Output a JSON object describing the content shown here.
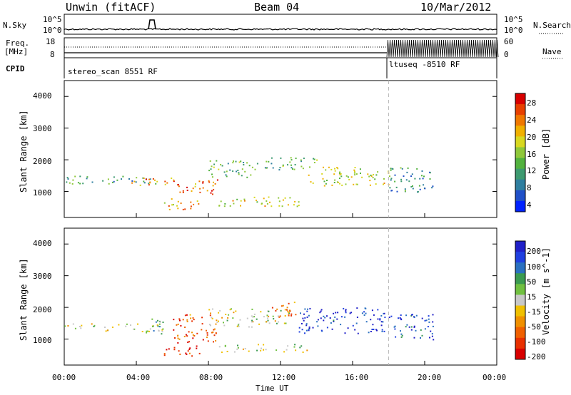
{
  "header": {
    "radar": "Unwin (fitACF)",
    "beam": "Beam 04",
    "date": "10/Mar/2012"
  },
  "top_panels": {
    "nsky_label": "N.Sky",
    "nsearch_label": "N.Search",
    "nsky_ticks": [
      "10^5",
      "10^0"
    ],
    "nsearch_ticks": [
      "10^5",
      "10^0"
    ],
    "freq_label_1": "Freq.",
    "freq_label_2": "[MHz]",
    "freq_ticks": [
      "18",
      "8"
    ],
    "nave_label": "Nave",
    "nave_ticks": [
      "60",
      "0"
    ],
    "cpid_label": "CPID",
    "cpid_1": "stereo_scan 8551 RF",
    "cpid_2": "ltuseq -8510 RF"
  },
  "chart_data": [
    {
      "type": "heatmap",
      "title": "",
      "xlabel": "Time UT",
      "ylabel": "Slant Range [km]",
      "x_ticks": [
        "00:00",
        "04:00",
        "08:00",
        "12:00",
        "16:00",
        "20:00",
        "00:00"
      ],
      "y_ticks": [
        "1000",
        "2000",
        "3000",
        "4000"
      ],
      "xlim": [
        0,
        24
      ],
      "ylim": [
        180,
        4500
      ],
      "colorbar": {
        "label": "Power [dB]",
        "ticks": [
          "4",
          "8",
          "12",
          "16",
          "20",
          "24",
          "28"
        ],
        "colors": [
          "#0022ff",
          "#2050c8",
          "#2f7fa0",
          "#3d9a70",
          "#52b23e",
          "#8fc83a",
          "#d8d820",
          "#f0b000",
          "#f07800",
          "#e84000",
          "#d80000"
        ]
      },
      "regions": [
        {
          "t": [
            0.0,
            5.5
          ],
          "r": [
            1250,
            1500
          ],
          "level": 0.35
        },
        {
          "t": [
            3.5,
            6.0
          ],
          "r": [
            1200,
            1450
          ],
          "level": 0.75
        },
        {
          "t": [
            5.5,
            7.5
          ],
          "r": [
            450,
            800
          ],
          "level": 0.7
        },
        {
          "t": [
            6.0,
            8.5
          ],
          "r": [
            900,
            1400
          ],
          "level": 0.8
        },
        {
          "t": [
            8.0,
            10.5
          ],
          "r": [
            1400,
            2000
          ],
          "level": 0.4
        },
        {
          "t": [
            8.5,
            13.5
          ],
          "r": [
            550,
            850
          ],
          "level": 0.6
        },
        {
          "t": [
            10.5,
            14.0
          ],
          "r": [
            1700,
            2100
          ],
          "level": 0.4
        },
        {
          "t": [
            13.5,
            17.5
          ],
          "r": [
            1200,
            1800
          ],
          "level": 0.55
        },
        {
          "t": [
            17.5,
            18.0
          ],
          "r": [
            1200,
            1700
          ],
          "level": 0.65
        },
        {
          "t": [
            18.0,
            20.5
          ],
          "r": [
            1000,
            1800
          ],
          "level": 0.3
        }
      ]
    },
    {
      "type": "heatmap",
      "title": "",
      "xlabel": "Time UT",
      "ylabel": "Slant Range [km]",
      "x_ticks": [
        "00:00",
        "04:00",
        "08:00",
        "12:00",
        "16:00",
        "20:00",
        "00:00"
      ],
      "y_ticks": [
        "1000",
        "2000",
        "3000",
        "4000"
      ],
      "xlim": [
        0,
        24
      ],
      "ylim": [
        180,
        4500
      ],
      "colorbar": {
        "label": "Velocity [m s^-1]",
        "ticks": [
          "200",
          "100",
          "50",
          "15",
          "-15",
          "-50",
          "-100",
          "-200"
        ],
        "colors": [
          "#2020c8",
          "#2040e0",
          "#2a70c0",
          "#3a9a50",
          "#70c040",
          "#c8c8c8",
          "#f0c000",
          "#f09000",
          "#f06000",
          "#e83000",
          "#d80000"
        ]
      },
      "regions": [
        {
          "t": [
            0.0,
            5.5
          ],
          "r": [
            1250,
            1500
          ],
          "level": 0.5
        },
        {
          "t": [
            4.5,
            5.5
          ],
          "r": [
            1150,
            1700
          ],
          "level": 0.35
        },
        {
          "t": [
            5.5,
            7.5
          ],
          "r": [
            450,
            800
          ],
          "level": 0.9
        },
        {
          "t": [
            6.0,
            8.5
          ],
          "r": [
            900,
            1800
          ],
          "level": 0.8
        },
        {
          "t": [
            8.0,
            12.5
          ],
          "r": [
            1400,
            2000
          ],
          "level": 0.5
        },
        {
          "t": [
            8.5,
            13.5
          ],
          "r": [
            600,
            850
          ],
          "level": 0.5
        },
        {
          "t": [
            11.5,
            13.0
          ],
          "r": [
            1700,
            2200
          ],
          "level": 0.75
        },
        {
          "t": [
            13.0,
            17.8
          ],
          "r": [
            1200,
            2000
          ],
          "level": 0.1
        },
        {
          "t": [
            18.0,
            20.5
          ],
          "r": [
            1000,
            1800
          ],
          "level": 0.15
        }
      ]
    }
  ]
}
